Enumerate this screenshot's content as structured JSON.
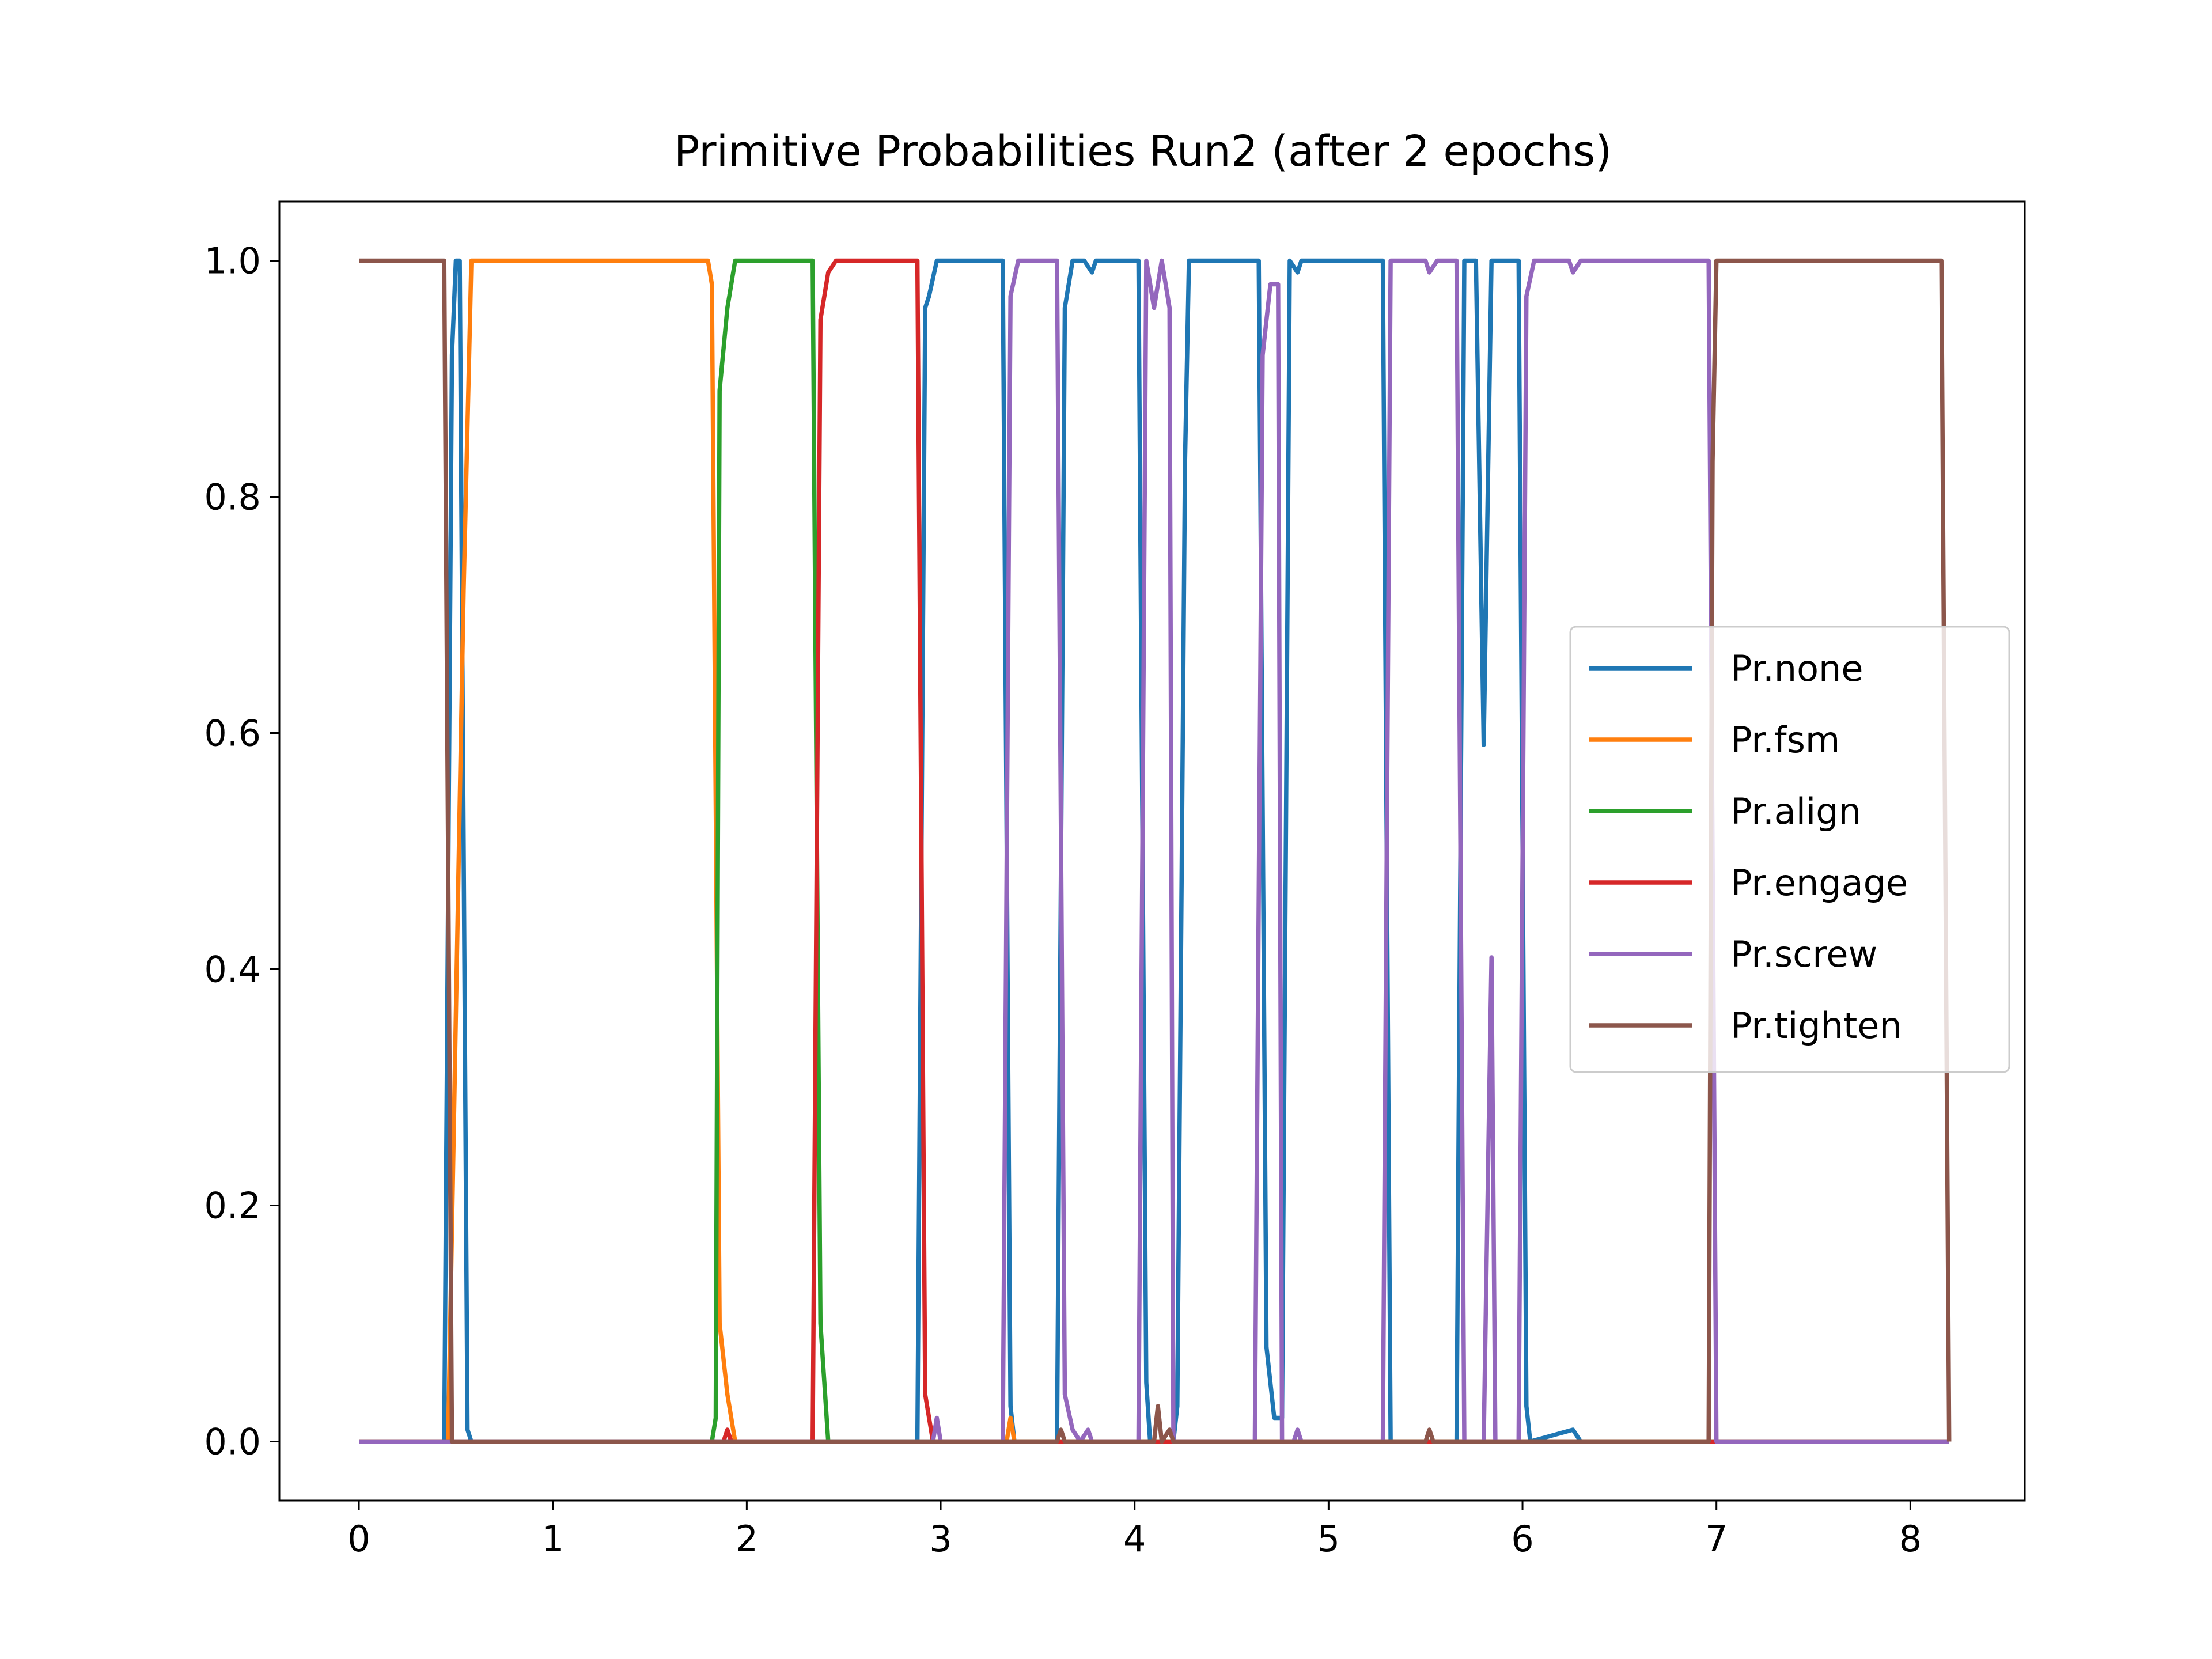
{
  "chart_data": {
    "type": "line",
    "title": "Primitive Probabilities Run2 (after 2 epochs)",
    "xlabel": "",
    "ylabel": "",
    "xlim": [
      -0.41,
      8.59
    ],
    "ylim": [
      -0.05,
      1.05
    ],
    "xticks": [
      "0",
      "1",
      "2",
      "3",
      "4",
      "5",
      "6",
      "7",
      "8"
    ],
    "yticks": [
      "0.0",
      "0.2",
      "0.4",
      "0.6",
      "0.8",
      "1.0"
    ],
    "grid": false,
    "legend_position": "center-right",
    "series": [
      {
        "name": "Pr.none",
        "color": "#1f77b4",
        "points": [
          [
            0,
            0
          ],
          [
            0.44,
            0
          ],
          [
            0.48,
            0.92
          ],
          [
            0.5,
            1
          ],
          [
            0.52,
            1
          ],
          [
            0.56,
            0.01
          ],
          [
            0.58,
            0
          ],
          [
            2.88,
            0
          ],
          [
            2.92,
            0.96
          ],
          [
            2.94,
            0.97
          ],
          [
            2.98,
            1
          ],
          [
            3.32,
            1
          ],
          [
            3.36,
            0.03
          ],
          [
            3.38,
            0
          ],
          [
            3.6,
            0
          ],
          [
            3.64,
            0.96
          ],
          [
            3.68,
            1
          ],
          [
            3.74,
            1
          ],
          [
            3.78,
            0.99
          ],
          [
            3.8,
            1
          ],
          [
            4.02,
            1
          ],
          [
            4.06,
            0.05
          ],
          [
            4.08,
            0
          ],
          [
            4.2,
            0
          ],
          [
            4.22,
            0.03
          ],
          [
            4.26,
            0.83
          ],
          [
            4.28,
            1
          ],
          [
            4.64,
            1
          ],
          [
            4.68,
            0.08
          ],
          [
            4.72,
            0.02
          ],
          [
            4.76,
            0.02
          ],
          [
            4.8,
            1
          ],
          [
            4.84,
            0.99
          ],
          [
            4.86,
            1
          ],
          [
            5.28,
            1
          ],
          [
            5.32,
            0
          ],
          [
            5.66,
            0
          ],
          [
            5.7,
            1
          ],
          [
            5.76,
            1
          ],
          [
            5.8,
            0.59
          ],
          [
            5.84,
            1
          ],
          [
            5.98,
            1
          ],
          [
            6.02,
            0.03
          ],
          [
            6.04,
            0
          ],
          [
            6.26,
            0.01
          ],
          [
            6.3,
            0
          ],
          [
            8.2,
            0
          ]
        ]
      },
      {
        "name": "Pr.fsm",
        "color": "#ff7f0e",
        "points": [
          [
            0,
            0
          ],
          [
            0.46,
            0
          ],
          [
            0.54,
            0.72
          ],
          [
            0.58,
            1
          ],
          [
            1.8,
            1
          ],
          [
            1.82,
            0.98
          ],
          [
            1.86,
            0.1
          ],
          [
            1.9,
            0.04
          ],
          [
            1.94,
            0
          ],
          [
            3.34,
            0
          ],
          [
            3.36,
            0.02
          ],
          [
            3.38,
            0
          ],
          [
            8.2,
            0
          ]
        ]
      },
      {
        "name": "Pr.align",
        "color": "#2ca02c",
        "points": [
          [
            0,
            0
          ],
          [
            1.82,
            0
          ],
          [
            1.84,
            0.02
          ],
          [
            1.86,
            0.89
          ],
          [
            1.9,
            0.96
          ],
          [
            1.94,
            1
          ],
          [
            2.34,
            1
          ],
          [
            2.38,
            0.1
          ],
          [
            2.42,
            0
          ],
          [
            8.2,
            0
          ]
        ]
      },
      {
        "name": "Pr.engage",
        "color": "#d62728",
        "points": [
          [
            0,
            0
          ],
          [
            1.88,
            0
          ],
          [
            1.9,
            0.01
          ],
          [
            1.92,
            0
          ],
          [
            2.34,
            0
          ],
          [
            2.38,
            0.95
          ],
          [
            2.42,
            0.99
          ],
          [
            2.46,
            1
          ],
          [
            2.88,
            1
          ],
          [
            2.92,
            0.04
          ],
          [
            2.96,
            0
          ],
          [
            8.2,
            0
          ]
        ]
      },
      {
        "name": "Pr.screw",
        "color": "#9467bd",
        "points": [
          [
            0,
            0
          ],
          [
            2.96,
            0
          ],
          [
            2.98,
            0.02
          ],
          [
            3,
            0
          ],
          [
            3.32,
            0
          ],
          [
            3.36,
            0.97
          ],
          [
            3.4,
            1
          ],
          [
            3.6,
            1
          ],
          [
            3.64,
            0.04
          ],
          [
            3.68,
            0.01
          ],
          [
            3.72,
            0
          ],
          [
            3.76,
            0.01
          ],
          [
            3.78,
            0
          ],
          [
            4.02,
            0
          ],
          [
            4.06,
            1
          ],
          [
            4.1,
            0.96
          ],
          [
            4.14,
            1
          ],
          [
            4.18,
            0.96
          ],
          [
            4.2,
            0
          ],
          [
            4.62,
            0
          ],
          [
            4.66,
            0.92
          ],
          [
            4.7,
            0.98
          ],
          [
            4.74,
            0.98
          ],
          [
            4.76,
            0
          ],
          [
            4.82,
            0
          ],
          [
            4.84,
            0.01
          ],
          [
            4.86,
            0
          ],
          [
            5.28,
            0
          ],
          [
            5.32,
            1
          ],
          [
            5.5,
            1
          ],
          [
            5.52,
            0.99
          ],
          [
            5.56,
            1
          ],
          [
            5.66,
            1
          ],
          [
            5.7,
            0
          ],
          [
            5.8,
            0
          ],
          [
            5.84,
            0.41
          ],
          [
            5.86,
            0
          ],
          [
            5.98,
            0
          ],
          [
            6.02,
            0.97
          ],
          [
            6.06,
            1
          ],
          [
            6.24,
            1
          ],
          [
            6.26,
            0.99
          ],
          [
            6.3,
            1
          ],
          [
            6.96,
            1
          ],
          [
            7,
            0
          ],
          [
            8.2,
            0
          ]
        ]
      },
      {
        "name": "Pr.tighten",
        "color": "#8c564b",
        "points": [
          [
            0,
            1
          ],
          [
            0.44,
            1
          ],
          [
            0.48,
            0
          ],
          [
            3.6,
            0
          ],
          [
            3.62,
            0.01
          ],
          [
            3.64,
            0
          ],
          [
            4.1,
            0
          ],
          [
            4.12,
            0.03
          ],
          [
            4.14,
            0
          ],
          [
            4.18,
            0.01
          ],
          [
            4.2,
            0
          ],
          [
            5.5,
            0
          ],
          [
            5.52,
            0.01
          ],
          [
            5.54,
            0
          ],
          [
            6.96,
            0
          ],
          [
            6.98,
            0.83
          ],
          [
            7,
            1
          ],
          [
            8.16,
            1
          ],
          [
            8.2,
            0
          ]
        ]
      }
    ]
  }
}
